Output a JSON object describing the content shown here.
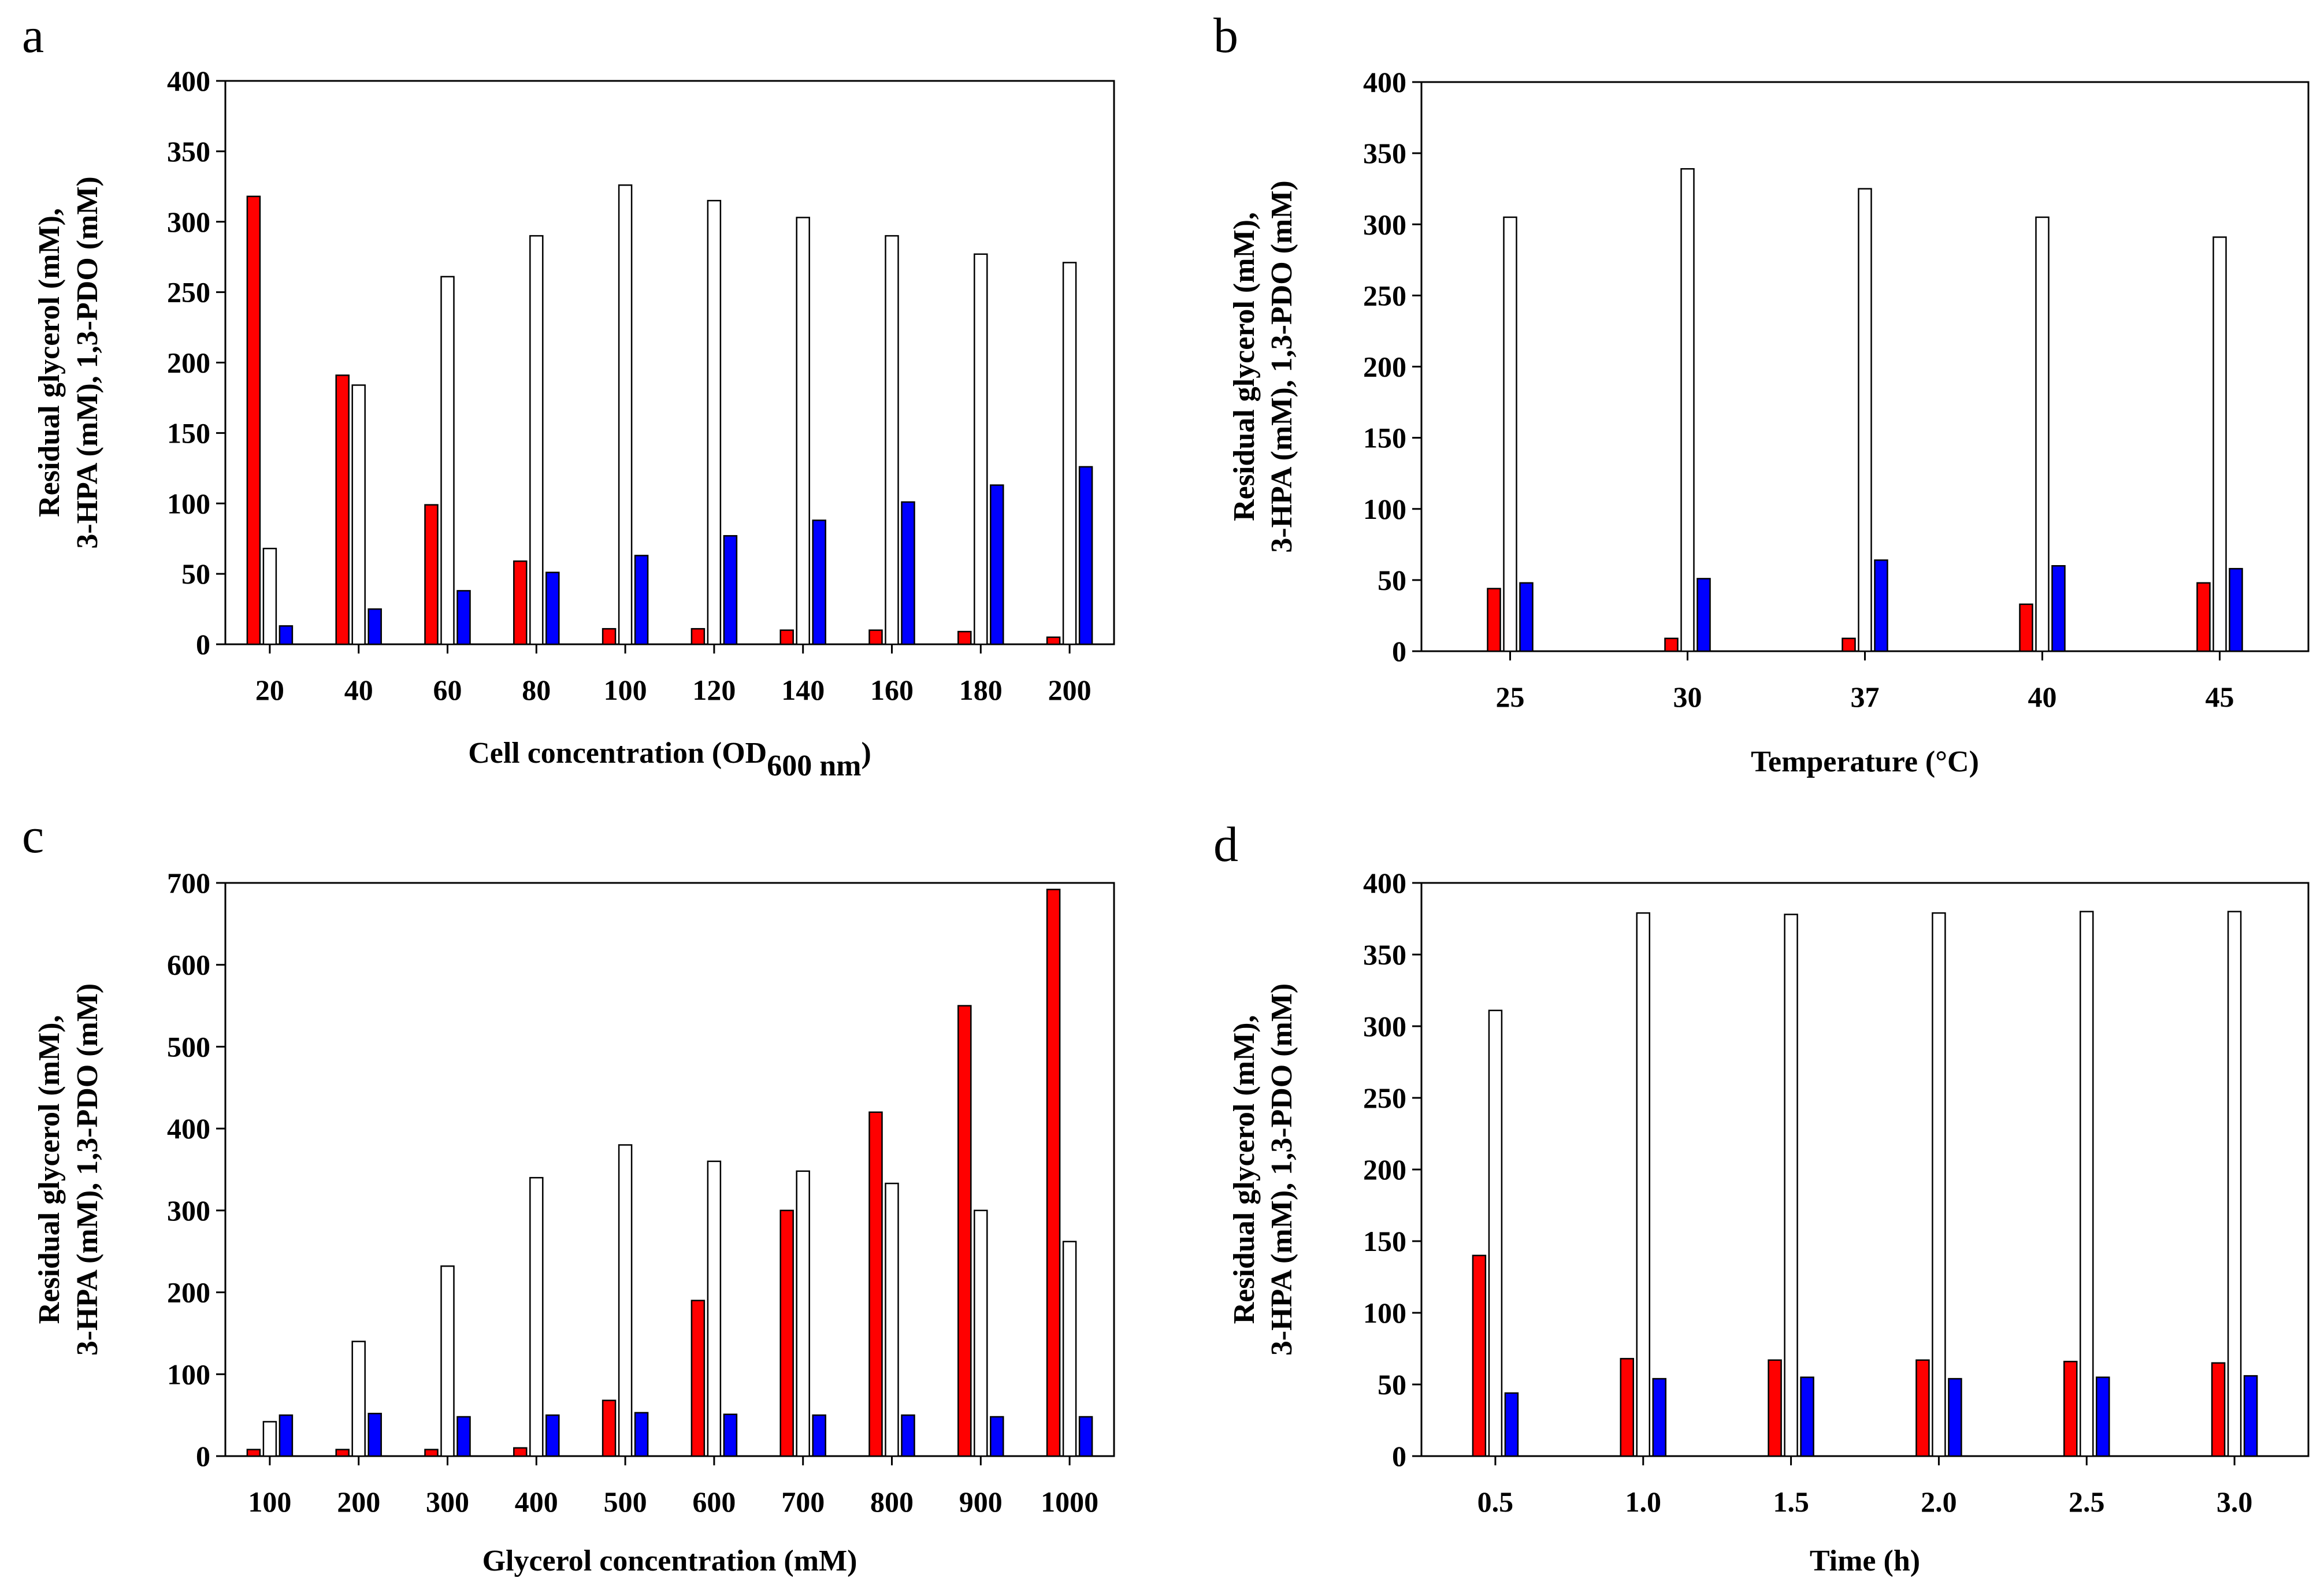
{
  "colors": {
    "glycerol": "#ff0000",
    "hpa": "#ffffff",
    "pdo": "#0000ff",
    "outline": "#000000"
  },
  "chart_data": [
    {
      "panel": "a",
      "type": "bar",
      "title": "",
      "xlabel": "Cell concentration (OD",
      "xlabel_sub": "600 nm",
      "xlabel_tail": ")",
      "ylabel_line1": "Residual glycerol (mM),",
      "ylabel_line2": "3-HPA (mM), 1,3-PDO (mM)",
      "ylim": [
        0,
        400
      ],
      "yticks": [
        0,
        50,
        100,
        150,
        200,
        250,
        300,
        350,
        400
      ],
      "categories": [
        "20",
        "40",
        "60",
        "80",
        "100",
        "120",
        "140",
        "160",
        "180",
        "200"
      ],
      "series": [
        {
          "name": "Residual glycerol",
          "color_key": "glycerol",
          "values": [
            318,
            191,
            99,
            59,
            11,
            11,
            10,
            10,
            9,
            5
          ]
        },
        {
          "name": "3-HPA",
          "color_key": "hpa",
          "values": [
            68,
            184,
            261,
            290,
            326,
            315,
            303,
            290,
            277,
            271
          ]
        },
        {
          "name": "1,3-PDO",
          "color_key": "pdo",
          "values": [
            13,
            25,
            38,
            51,
            63,
            77,
            88,
            101,
            113,
            126
          ]
        }
      ]
    },
    {
      "panel": "b",
      "type": "bar",
      "title": "",
      "xlabel": "Temperature (°C)",
      "xlabel_sub": "",
      "xlabel_tail": "",
      "ylabel_line1": "Residual glycerol (mM),",
      "ylabel_line2": "3-HPA (mM), 1,3-PDO (mM)",
      "ylim": [
        0,
        400
      ],
      "yticks": [
        0,
        50,
        100,
        150,
        200,
        250,
        300,
        350,
        400
      ],
      "categories": [
        "25",
        "30",
        "37",
        "40",
        "45"
      ],
      "series": [
        {
          "name": "Residual glycerol",
          "color_key": "glycerol",
          "values": [
            44,
            9,
            9,
            33,
            48
          ]
        },
        {
          "name": "3-HPA",
          "color_key": "hpa",
          "values": [
            305,
            339,
            325,
            305,
            291
          ]
        },
        {
          "name": "1,3-PDO",
          "color_key": "pdo",
          "values": [
            48,
            51,
            64,
            60,
            58
          ]
        }
      ]
    },
    {
      "panel": "c",
      "type": "bar",
      "title": "",
      "xlabel": "Glycerol concentration (mM)",
      "xlabel_sub": "",
      "xlabel_tail": "",
      "ylabel_line1": "Residual glycerol (mM),",
      "ylabel_line2": "3-HPA (mM), 1,3-PDO (mM)",
      "ylim": [
        0,
        700
      ],
      "yticks": [
        0,
        100,
        200,
        300,
        400,
        500,
        600,
        700
      ],
      "categories": [
        "100",
        "200",
        "300",
        "400",
        "500",
        "600",
        "700",
        "800",
        "900",
        "1000"
      ],
      "series": [
        {
          "name": "Residual glycerol",
          "color_key": "glycerol",
          "values": [
            8,
            8,
            8,
            10,
            68,
            190,
            300,
            420,
            550,
            692
          ]
        },
        {
          "name": "3-HPA",
          "color_key": "hpa",
          "values": [
            42,
            140,
            232,
            340,
            380,
            360,
            348,
            333,
            300,
            262
          ]
        },
        {
          "name": "1,3-PDO",
          "color_key": "pdo",
          "values": [
            50,
            52,
            48,
            50,
            53,
            51,
            50,
            50,
            48,
            48
          ]
        }
      ]
    },
    {
      "panel": "d",
      "type": "bar",
      "title": "",
      "xlabel": "Time (h)",
      "xlabel_sub": "",
      "xlabel_tail": "",
      "ylabel_line1": "Residual glycerol (mM),",
      "ylabel_line2": "3-HPA (mM), 1,3-PDO (mM)",
      "ylim": [
        0,
        400
      ],
      "yticks": [
        0,
        50,
        100,
        150,
        200,
        250,
        300,
        350,
        400
      ],
      "categories": [
        "0.5",
        "1.0",
        "1.5",
        "2.0",
        "2.5",
        "3.0"
      ],
      "series": [
        {
          "name": "Residual glycerol",
          "color_key": "glycerol",
          "values": [
            140,
            68,
            67,
            67,
            66,
            65
          ]
        },
        {
          "name": "3-HPA",
          "color_key": "hpa",
          "values": [
            311,
            379,
            378,
            379,
            380,
            380
          ]
        },
        {
          "name": "1,3-PDO",
          "color_key": "pdo",
          "values": [
            44,
            54,
            55,
            54,
            55,
            56
          ]
        }
      ]
    }
  ]
}
